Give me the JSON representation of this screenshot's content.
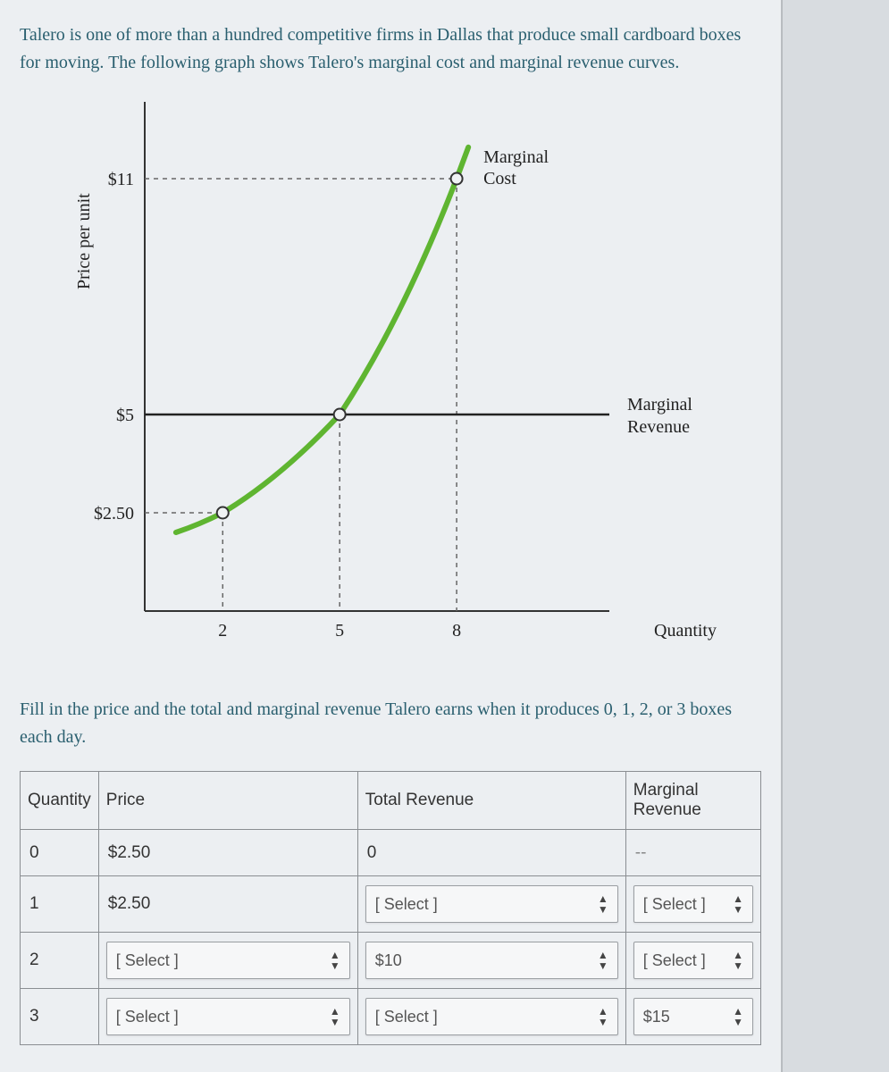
{
  "question_text": "Talero is one of more than a hundred competitive firms in Dallas that produce small cardboard boxes for moving. The following graph shows Talero's marginal cost and marginal revenue curves.",
  "fill_text": "Fill in the price and the total and marginal revenue Talero earns when it produces 0, 1, 2, or 3 boxes each day.",
  "chart": {
    "y_axis_label": "Price per unit",
    "y_ticks": [
      "$11",
      "$5",
      "$2.50"
    ],
    "y_tick_vals": [
      11,
      5,
      2.5
    ],
    "x_axis_label": "Quantity",
    "x_ticks": [
      "2",
      "5",
      "8"
    ],
    "x_tick_vals": [
      2,
      5,
      8
    ],
    "mc_label": "Marginal Cost",
    "mr_label": "Marginal Revenue",
    "mc_color": "#5fb531",
    "axis_color": "#333333",
    "dash_color": "#666666",
    "bg_color": "#eceff2",
    "mr_value": 5,
    "mc_points": [
      {
        "q": 2,
        "p": 2.5
      },
      {
        "q": 5,
        "p": 5
      },
      {
        "q": 8,
        "p": 11
      }
    ],
    "y_max": 12.5,
    "x_max": 11
  },
  "table": {
    "headers": [
      "Quantity",
      "Price",
      "Total Revenue",
      "Marginal Revenue"
    ],
    "select_placeholder": "[ Select ]",
    "rows": [
      {
        "q": "0",
        "price": "$2.50",
        "price_is_select": false,
        "tr": "0",
        "tr_is_select": false,
        "mr": "--",
        "mr_is_select": false,
        "mr_dash": true
      },
      {
        "q": "1",
        "price": "$2.50",
        "price_is_select": false,
        "tr": "",
        "tr_is_select": true,
        "mr": "",
        "mr_is_select": true
      },
      {
        "q": "2",
        "price": "",
        "price_is_select": true,
        "tr": "$10",
        "tr_is_select": false,
        "tr_boxed": true,
        "mr": "",
        "mr_is_select": true
      },
      {
        "q": "3",
        "price": "",
        "price_is_select": true,
        "tr": "",
        "tr_is_select": true,
        "mr": "$15",
        "mr_is_select": false,
        "mr_boxed": true
      }
    ]
  }
}
